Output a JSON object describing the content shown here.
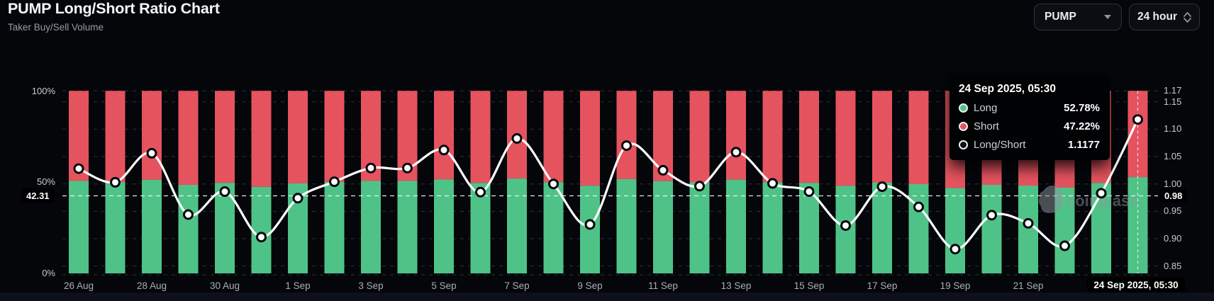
{
  "header": {
    "title": "PUMP Long/Short Ratio Chart",
    "subtitle": "Taker Buy/Sell Volume",
    "symbol_select": {
      "value": "PUMP"
    },
    "interval_select": {
      "value": "24 hour"
    }
  },
  "watermark": {
    "text": "coinglass"
  },
  "tooltip": {
    "date": "24 Sep 2025, 05:30",
    "rows": [
      {
        "key": "Long",
        "value": "52.78%",
        "color": "#4fc387"
      },
      {
        "key": "Short",
        "value": "47.22%",
        "color": "#e5535f"
      },
      {
        "key": "Long/Short",
        "value": "1.1177",
        "color": "#0a0c10"
      }
    ]
  },
  "crosshair": {
    "left_label": "42.31",
    "right_label": "0.98",
    "date_label": "24 Sep 2025, 05:30"
  },
  "axes": {
    "left_ticks": [
      "100%",
      "50%",
      "0%"
    ],
    "right_ticks": [
      "1.17",
      "1.15",
      "1.10",
      "1.05",
      "1.00",
      "0.95",
      "0.90",
      "0.85"
    ],
    "x_ticks": [
      "26 Aug",
      "28 Aug",
      "30 Aug",
      "1 Sep",
      "3 Sep",
      "5 Sep",
      "7 Sep",
      "9 Sep",
      "11 Sep",
      "13 Sep",
      "15 Sep",
      "17 Sep",
      "19 Sep",
      "21 Sep",
      "23 Sep"
    ]
  },
  "chart_data": {
    "type": "bar",
    "subtype": "stacked-percent-bars-with-ratio-line",
    "title": "PUMP Long/Short Ratio Chart",
    "categories": [
      "26 Aug",
      "27 Aug",
      "28 Aug",
      "29 Aug",
      "30 Aug",
      "31 Aug",
      "1 Sep",
      "2 Sep",
      "3 Sep",
      "4 Sep",
      "5 Sep",
      "6 Sep",
      "7 Sep",
      "8 Sep",
      "9 Sep",
      "10 Sep",
      "11 Sep",
      "12 Sep",
      "13 Sep",
      "14 Sep",
      "15 Sep",
      "16 Sep",
      "17 Sep",
      "18 Sep",
      "19 Sep",
      "20 Sep",
      "21 Sep",
      "22 Sep",
      "23 Sep",
      "24 Sep"
    ],
    "series": [
      {
        "name": "Long",
        "unit": "%",
        "axis": "left",
        "values": [
          50.69,
          50.07,
          51.36,
          48.56,
          49.65,
          47.45,
          49.34,
          50.1,
          50.71,
          50.71,
          51.5,
          49.62,
          51.99,
          50.0,
          48.08,
          51.69,
          50.62,
          49.9,
          51.41,
          50.02,
          49.65,
          48.02,
          49.87,
          48.93,
          46.84,
          48.53,
          48.13,
          47.01,
          49.57,
          52.78
        ]
      },
      {
        "name": "Short",
        "unit": "%",
        "axis": "left",
        "values": [
          49.31,
          49.93,
          48.64,
          51.44,
          50.35,
          52.55,
          50.66,
          49.9,
          49.29,
          49.29,
          48.5,
          50.38,
          48.01,
          50.0,
          51.92,
          48.31,
          49.38,
          50.1,
          48.59,
          49.98,
          50.35,
          51.98,
          50.13,
          51.07,
          53.16,
          51.47,
          51.87,
          52.99,
          50.43,
          47.22
        ]
      },
      {
        "name": "Long/Short",
        "type": "line",
        "axis": "right",
        "values": [
          1.028,
          1.003,
          1.056,
          0.944,
          0.986,
          0.903,
          0.974,
          1.004,
          1.029,
          1.029,
          1.062,
          0.985,
          1.083,
          1.0,
          0.926,
          1.07,
          1.025,
          0.996,
          1.058,
          1.001,
          0.986,
          0.924,
          0.995,
          0.958,
          0.881,
          0.943,
          0.928,
          0.887,
          0.983,
          1.1177
        ]
      }
    ],
    "left_axis": {
      "ticks": [
        100,
        50,
        0
      ],
      "unit": "%",
      "range": [
        0,
        100
      ]
    },
    "right_axis": {
      "ticks": [
        1.17,
        1.15,
        1.1,
        1.05,
        1.0,
        0.95,
        0.9,
        0.85
      ],
      "range": [
        0.85,
        1.17
      ]
    },
    "grid": "horizontal-dashed",
    "legend_position": "tooltip-only",
    "highlighted_index": 29,
    "crosshair_values": {
      "y_left": 42.31,
      "y_right": 0.98,
      "x": "24 Sep 2025, 05:30"
    },
    "colors": {
      "long": "#4fc387",
      "short": "#e5535f",
      "ratio_line": "#ffffff"
    }
  }
}
